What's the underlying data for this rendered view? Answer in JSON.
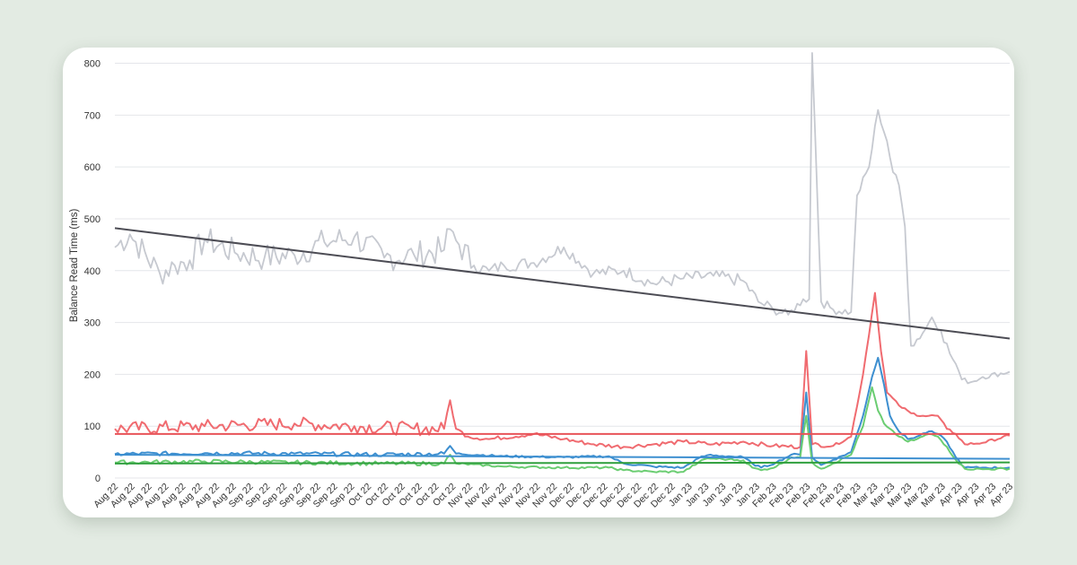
{
  "chart_data": {
    "type": "line",
    "title": "",
    "xlabel": "",
    "ylabel": "Balance Read Time (ms)",
    "ylim": [
      0,
      820
    ],
    "yticks": [
      0,
      100,
      200,
      300,
      400,
      500,
      600,
      700,
      800
    ],
    "grid": true,
    "legend": "none",
    "x_tick_labels": [
      "Aug 22",
      "Aug 22",
      "Aug 22",
      "Aug 22",
      "Aug 22",
      "Aug 22",
      "Aug 22",
      "Aug 22",
      "Sep 22",
      "Sep 22",
      "Sep 22",
      "Sep 22",
      "Sep 22",
      "Sep 22",
      "Sep 22",
      "Oct 22",
      "Oct 22",
      "Oct 22",
      "Oct 22",
      "Oct 22",
      "Oct 22",
      "Nov 22",
      "Nov 22",
      "Nov 22",
      "Nov 22",
      "Nov 22",
      "Nov 22",
      "Dec 22",
      "Dec 22",
      "Dec 22",
      "Dec 22",
      "Dec 22",
      "Dec 22",
      "Dec 22",
      "Jan 23",
      "Jan 23",
      "Jan 23",
      "Jan 23",
      "Jan 23",
      "Feb 23",
      "Feb 23",
      "Feb 23",
      "Feb 23",
      "Feb 23",
      "Feb 23",
      "Mar 23",
      "Mar 23",
      "Mar 23",
      "Mar 23",
      "Mar 23",
      "Apr 23",
      "Apr 23",
      "Apr 23",
      "Apr 23"
    ],
    "point_count": 300,
    "series": [
      {
        "color": "#c6c9d0",
        "keypoints": [
          [
            0,
            445
          ],
          [
            5,
            470
          ],
          [
            15,
            395
          ],
          [
            20,
            410
          ],
          [
            25,
            420
          ],
          [
            30,
            460
          ],
          [
            40,
            435
          ],
          [
            50,
            425
          ],
          [
            60,
            430
          ],
          [
            70,
            455
          ],
          [
            80,
            465
          ],
          [
            90,
            425
          ],
          [
            100,
            430
          ],
          [
            110,
            440
          ],
          [
            112,
            480
          ],
          [
            115,
            450
          ],
          [
            120,
            410
          ],
          [
            125,
            400
          ],
          [
            130,
            410
          ],
          [
            140,
            415
          ],
          [
            150,
            445
          ],
          [
            160,
            395
          ],
          [
            170,
            400
          ],
          [
            180,
            375
          ],
          [
            190,
            385
          ],
          [
            200,
            390
          ],
          [
            210,
            380
          ],
          [
            215,
            340
          ],
          [
            220,
            325
          ],
          [
            225,
            315
          ],
          [
            230,
            345
          ],
          [
            232,
            345
          ],
          [
            233,
            820
          ],
          [
            236,
            340
          ],
          [
            240,
            325
          ],
          [
            246,
            320
          ],
          [
            248,
            545
          ],
          [
            252,
            600
          ],
          [
            255,
            710
          ],
          [
            258,
            650
          ],
          [
            260,
            590
          ],
          [
            262,
            565
          ],
          [
            264,
            485
          ],
          [
            266,
            255
          ],
          [
            270,
            280
          ],
          [
            273,
            310
          ],
          [
            276,
            285
          ],
          [
            279,
            240
          ],
          [
            281,
            220
          ],
          [
            283,
            190
          ],
          [
            286,
            185
          ],
          [
            290,
            195
          ],
          [
            299,
            205
          ]
        ]
      },
      {
        "color": "#f06b70",
        "keypoints": [
          [
            0,
            95
          ],
          [
            30,
            100
          ],
          [
            60,
            105
          ],
          [
            80,
            100
          ],
          [
            100,
            95
          ],
          [
            110,
            95
          ],
          [
            112,
            150
          ],
          [
            114,
            95
          ],
          [
            118,
            80
          ],
          [
            125,
            75
          ],
          [
            140,
            85
          ],
          [
            150,
            75
          ],
          [
            160,
            65
          ],
          [
            170,
            60
          ],
          [
            180,
            65
          ],
          [
            190,
            70
          ],
          [
            200,
            65
          ],
          [
            210,
            70
          ],
          [
            220,
            62
          ],
          [
            229,
            60
          ],
          [
            231,
            245
          ],
          [
            233,
            65
          ],
          [
            240,
            62
          ],
          [
            246,
            80
          ],
          [
            250,
            200
          ],
          [
            254,
            357
          ],
          [
            256,
            245
          ],
          [
            258,
            165
          ],
          [
            262,
            140
          ],
          [
            266,
            125
          ],
          [
            270,
            120
          ],
          [
            275,
            120
          ],
          [
            278,
            95
          ],
          [
            281,
            85
          ],
          [
            284,
            65
          ],
          [
            290,
            68
          ],
          [
            299,
            82
          ]
        ]
      },
      {
        "color": "#3d8fd0",
        "keypoints": [
          [
            0,
            46
          ],
          [
            30,
            48
          ],
          [
            60,
            47
          ],
          [
            90,
            45
          ],
          [
            110,
            47
          ],
          [
            112,
            62
          ],
          [
            114,
            47
          ],
          [
            130,
            42
          ],
          [
            150,
            40
          ],
          [
            165,
            42
          ],
          [
            170,
            28
          ],
          [
            180,
            22
          ],
          [
            190,
            20
          ],
          [
            195,
            38
          ],
          [
            198,
            44
          ],
          [
            205,
            42
          ],
          [
            210,
            40
          ],
          [
            213,
            28
          ],
          [
            216,
            20
          ],
          [
            221,
            30
          ],
          [
            226,
            45
          ],
          [
            229,
            45
          ],
          [
            231,
            165
          ],
          [
            233,
            40
          ],
          [
            236,
            25
          ],
          [
            240,
            35
          ],
          [
            246,
            50
          ],
          [
            250,
            120
          ],
          [
            253,
            195
          ],
          [
            255,
            232
          ],
          [
            257,
            180
          ],
          [
            259,
            120
          ],
          [
            262,
            90
          ],
          [
            265,
            75
          ],
          [
            268,
            80
          ],
          [
            272,
            90
          ],
          [
            275,
            85
          ],
          [
            278,
            70
          ],
          [
            281,
            40
          ],
          [
            284,
            20
          ],
          [
            290,
            20
          ],
          [
            299,
            20
          ]
        ]
      },
      {
        "color": "#6bcd72",
        "keypoints": [
          [
            0,
            30
          ],
          [
            30,
            32
          ],
          [
            60,
            30
          ],
          [
            90,
            28
          ],
          [
            110,
            28
          ],
          [
            112,
            45
          ],
          [
            114,
            28
          ],
          [
            130,
            22
          ],
          [
            150,
            20
          ],
          [
            165,
            20
          ],
          [
            170,
            15
          ],
          [
            180,
            12
          ],
          [
            190,
            12
          ],
          [
            195,
            30
          ],
          [
            198,
            38
          ],
          [
            205,
            36
          ],
          [
            210,
            34
          ],
          [
            213,
            20
          ],
          [
            216,
            15
          ],
          [
            221,
            22
          ],
          [
            226,
            40
          ],
          [
            229,
            40
          ],
          [
            231,
            120
          ],
          [
            233,
            30
          ],
          [
            236,
            18
          ],
          [
            240,
            28
          ],
          [
            246,
            45
          ],
          [
            250,
            100
          ],
          [
            253,
            175
          ],
          [
            255,
            130
          ],
          [
            257,
            105
          ],
          [
            259,
            95
          ],
          [
            262,
            80
          ],
          [
            265,
            70
          ],
          [
            268,
            75
          ],
          [
            272,
            85
          ],
          [
            275,
            80
          ],
          [
            278,
            60
          ],
          [
            281,
            35
          ],
          [
            284,
            18
          ],
          [
            290,
            17
          ],
          [
            299,
            18
          ]
        ]
      }
    ],
    "trend_lines": [
      {
        "color": "#4d4d55",
        "y_start": 482,
        "y_end": 269
      },
      {
        "color": "#e85358",
        "y_start": 85,
        "y_end": 85
      },
      {
        "color": "#3d8fd0",
        "y_start": 45,
        "y_end": 37
      },
      {
        "color": "#2f9f3d",
        "y_start": 28,
        "y_end": 30
      }
    ]
  }
}
